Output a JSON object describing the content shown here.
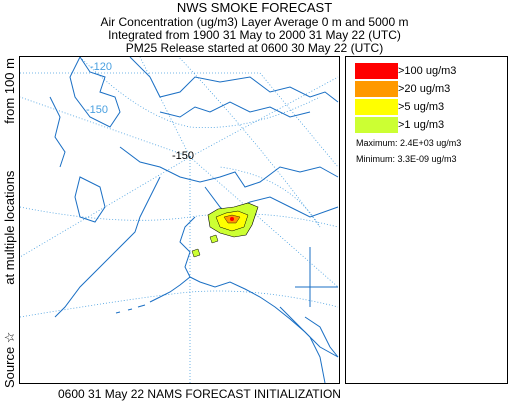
{
  "header": {
    "title": "NWS SMOKE FORECAST",
    "line2": "Air Concentration (ug/m3) Layer Average    0 m and  5000 m",
    "line3": "Integrated from 1900 31 May to 2000 31 May 22 (UTC)",
    "line4": "PM25 Release started at 0600 30 May 22 (UTC)"
  },
  "side_label": {
    "source": "Source ☆",
    "locations": "at multiple locations",
    "height": "from  100 m"
  },
  "map": {
    "longitude_labels": [
      "-120",
      "-150",
      "-150"
    ],
    "land_outline_color": "#1a6fc4",
    "graticule_color": "#4aa0e0"
  },
  "legend": {
    "items": [
      {
        "label": ">100 ug/m3",
        "color": "#ff0000"
      },
      {
        "label": ">20 ug/m3",
        "color": "#ff9900"
      },
      {
        "label": ">5 ug/m3",
        "color": "#ffff00"
      },
      {
        "label": ">1 ug/m3",
        "color": "#ccff33"
      }
    ],
    "maximum": "Maximum: 2.4E+03 ug/m3",
    "minimum": "Minimum: 3.3E-09 ug/m3"
  },
  "footer": {
    "text": "0600 31 May 22 NAMS FORECAST INITIALIZATION"
  }
}
